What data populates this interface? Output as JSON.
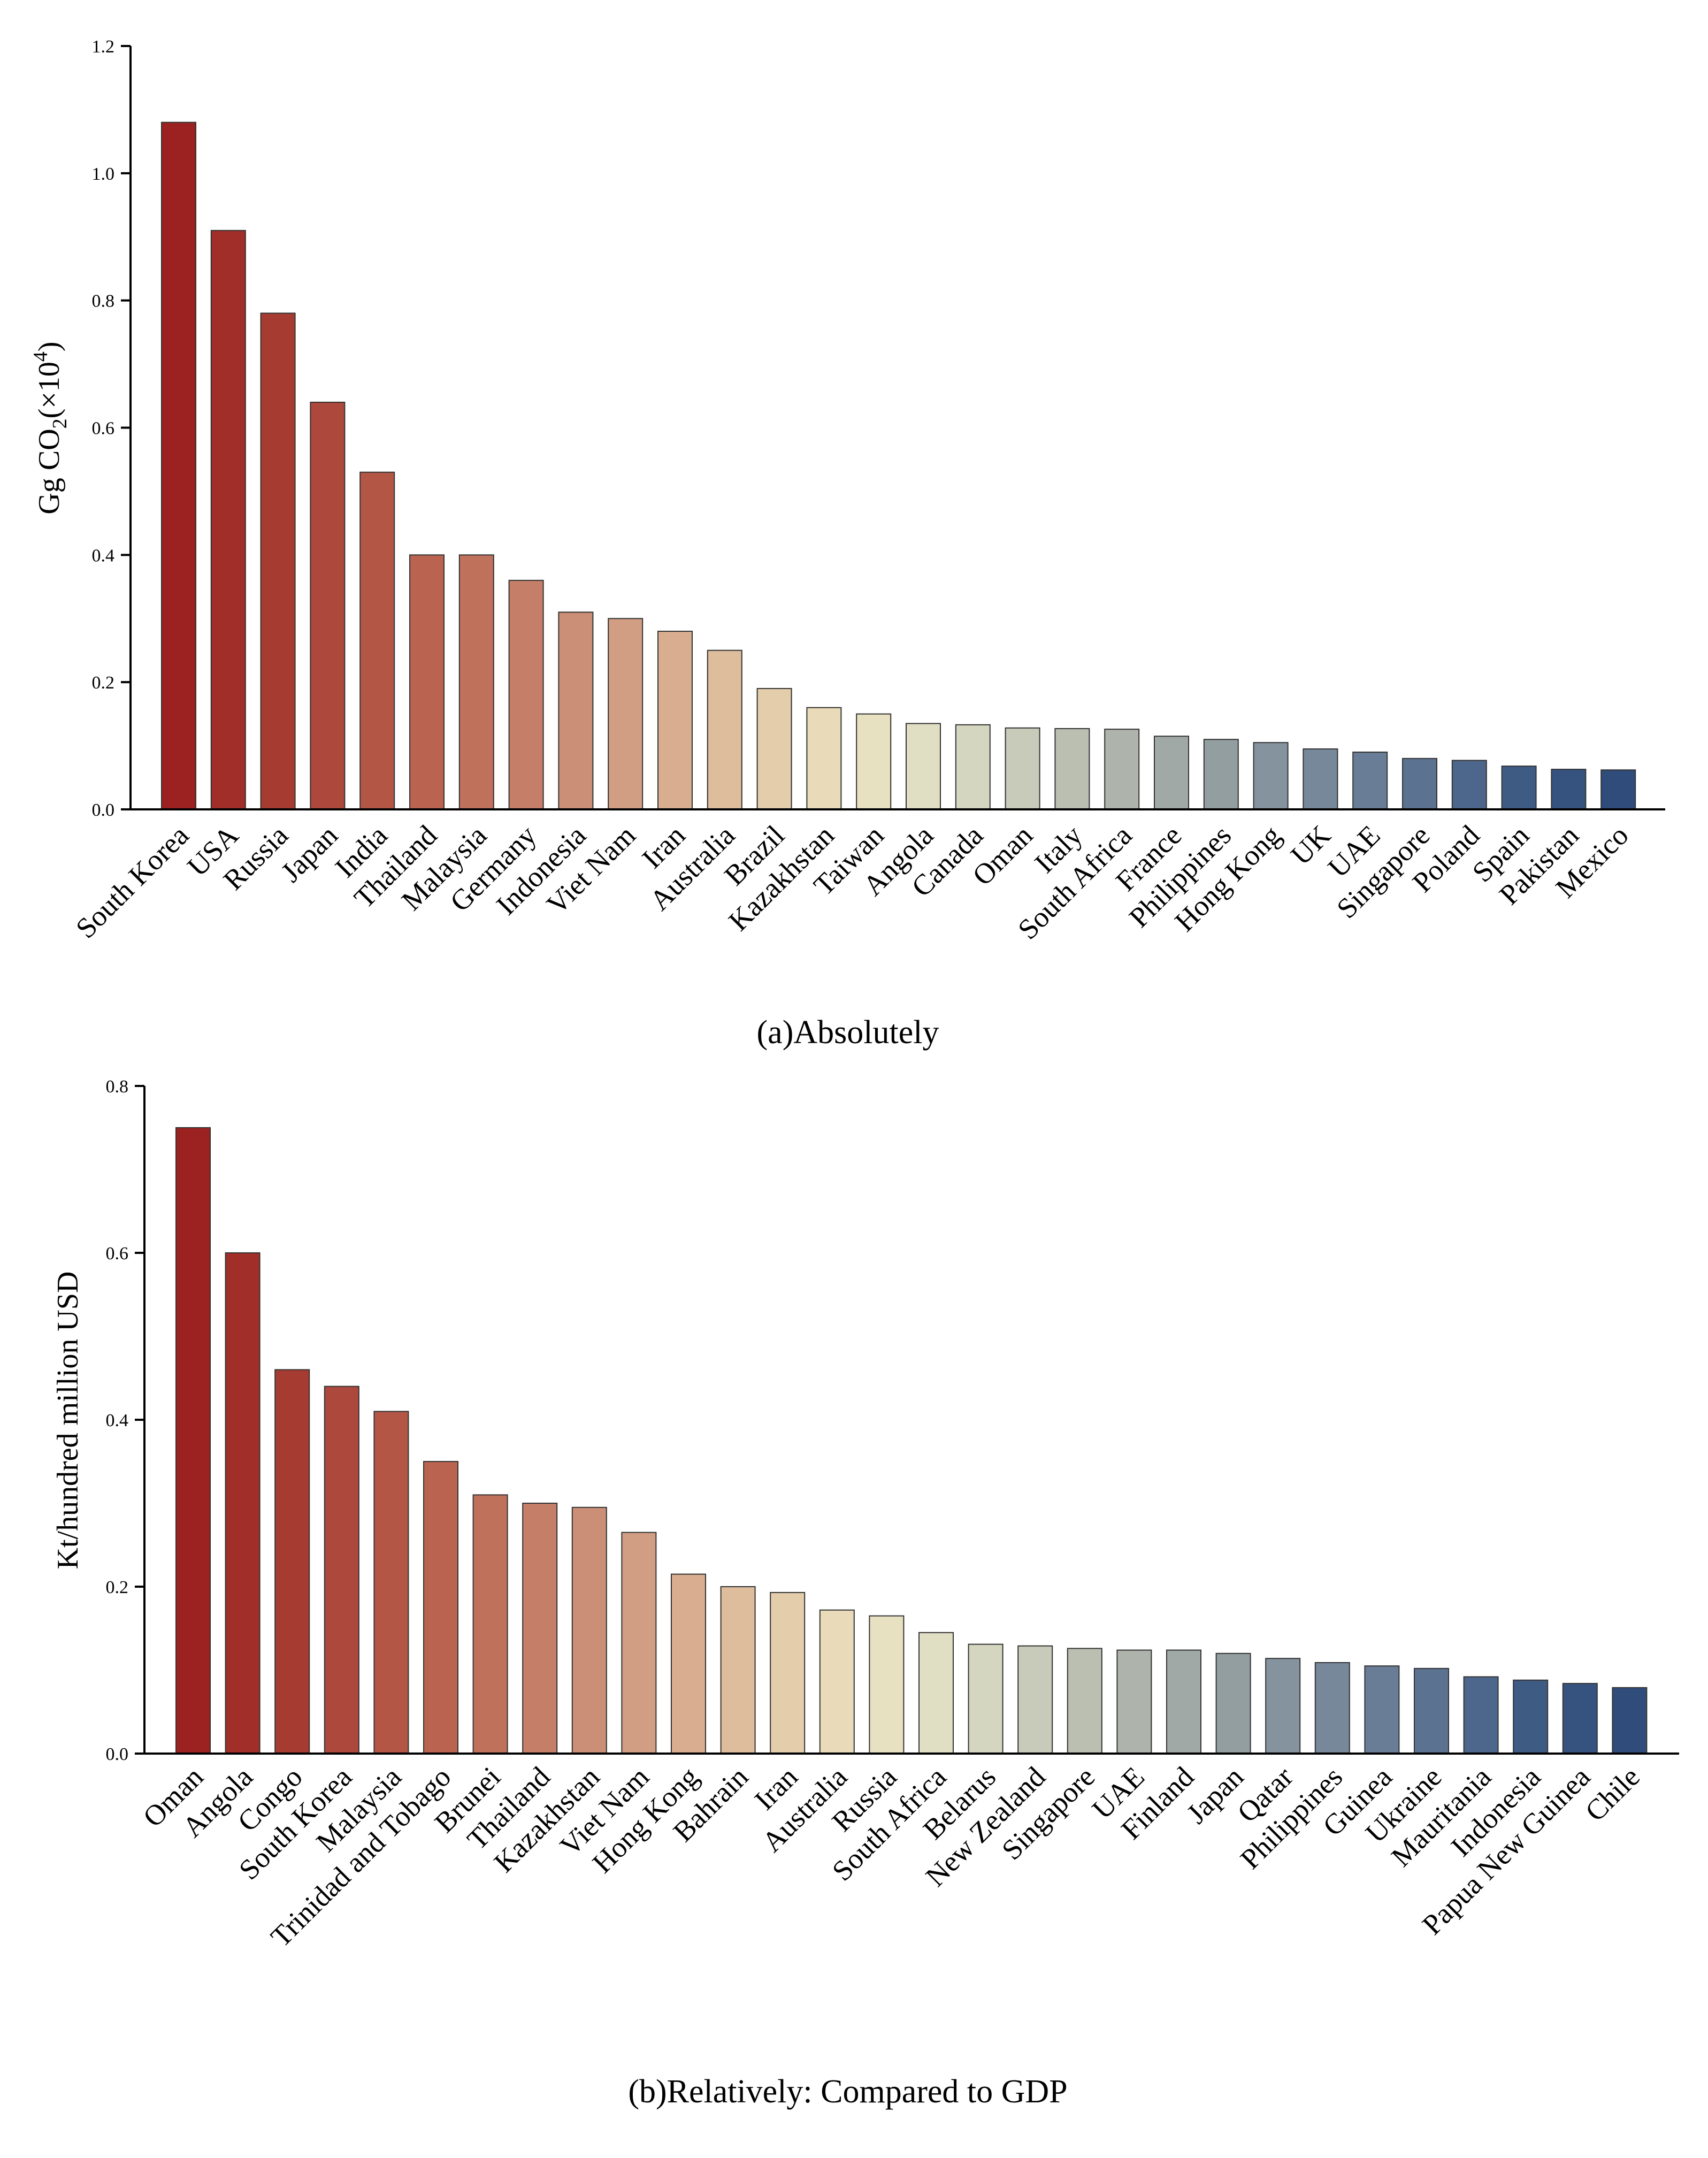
{
  "chart_data": [
    {
      "type": "bar",
      "title": "",
      "caption": "(a)Absolutely",
      "ylabel_parts": {
        "prefix": "Gg CO",
        "sub": "2",
        "mid": "(×10",
        "sup": "4",
        "suffix": ")"
      },
      "xlabel": "",
      "ylim": [
        0,
        1.2
      ],
      "yticks": [
        "0.0",
        "0.2",
        "0.4",
        "0.6",
        "0.8",
        "1.0",
        "1.2"
      ],
      "grid": false,
      "categories": [
        "South Korea",
        "USA",
        "Russia",
        "Japan",
        "India",
        "Thailand",
        "Malaysia",
        "Germany",
        "Indonesia",
        "Viet Nam",
        "Iran",
        "Australia",
        "Brazil",
        "Kazakhstan",
        "Taiwan",
        "Angola",
        "Canada",
        "Oman",
        "Italy",
        "South Africa",
        "France",
        "Philippines",
        "Hong Kong",
        "UK",
        "UAE",
        "Singapore",
        "Poland",
        "Spain",
        "Pakistan",
        "Mexico"
      ],
      "values": [
        1.08,
        0.91,
        0.78,
        0.64,
        0.53,
        0.4,
        0.4,
        0.36,
        0.31,
        0.3,
        0.28,
        0.25,
        0.19,
        0.16,
        0.15,
        0.135,
        0.133,
        0.128,
        0.127,
        0.126,
        0.115,
        0.11,
        0.105,
        0.095,
        0.09,
        0.08,
        0.077,
        0.068,
        0.063,
        0.062
      ]
    },
    {
      "type": "bar",
      "title": "",
      "caption": "(b)Relatively: Compared to GDP",
      "ylabel": "Kt/hundred million USD",
      "xlabel": "",
      "ylim": [
        0,
        0.8
      ],
      "yticks": [
        "0.0",
        "0.2",
        "0.4",
        "0.6",
        "0.8"
      ],
      "grid": false,
      "categories": [
        "Oman",
        "Angola",
        "Congo",
        "South Korea",
        "Malaysia",
        "Trinidad and Tobago",
        "Brunei",
        "Thailand",
        "Kazakhstan",
        "Viet Nam",
        "Hong Kong",
        "Bahrain",
        "Iran",
        "Australia",
        "Russia",
        "South Africa",
        "Belarus",
        "New Zealand",
        "Singapore",
        "UAE",
        "Finland",
        "Japan",
        "Qatar",
        "Philippines",
        "Guinea",
        "Ukraine",
        "Mauritania",
        "Indonesia",
        "Papua New Guinea",
        "Chile"
      ],
      "values": [
        0.75,
        0.6,
        0.46,
        0.44,
        0.41,
        0.35,
        0.31,
        0.3,
        0.295,
        0.265,
        0.215,
        0.2,
        0.193,
        0.172,
        0.165,
        0.145,
        0.131,
        0.129,
        0.126,
        0.124,
        0.124,
        0.12,
        0.114,
        0.109,
        0.105,
        0.102,
        0.092,
        0.088,
        0.084,
        0.079
      ]
    }
  ],
  "palette": [
    "#9b2220",
    "#a63a30",
    "#b25445",
    "#bf6e5a",
    "#c98a72",
    "#d6a88c",
    "#e2c7a5",
    "#ece3c0",
    "#dcdcc4",
    "#c3c6b6",
    "#aab0aa",
    "#8f9ba0",
    "#74869a",
    "#5a7090",
    "#3d5a84",
    "#2f4c7a"
  ]
}
